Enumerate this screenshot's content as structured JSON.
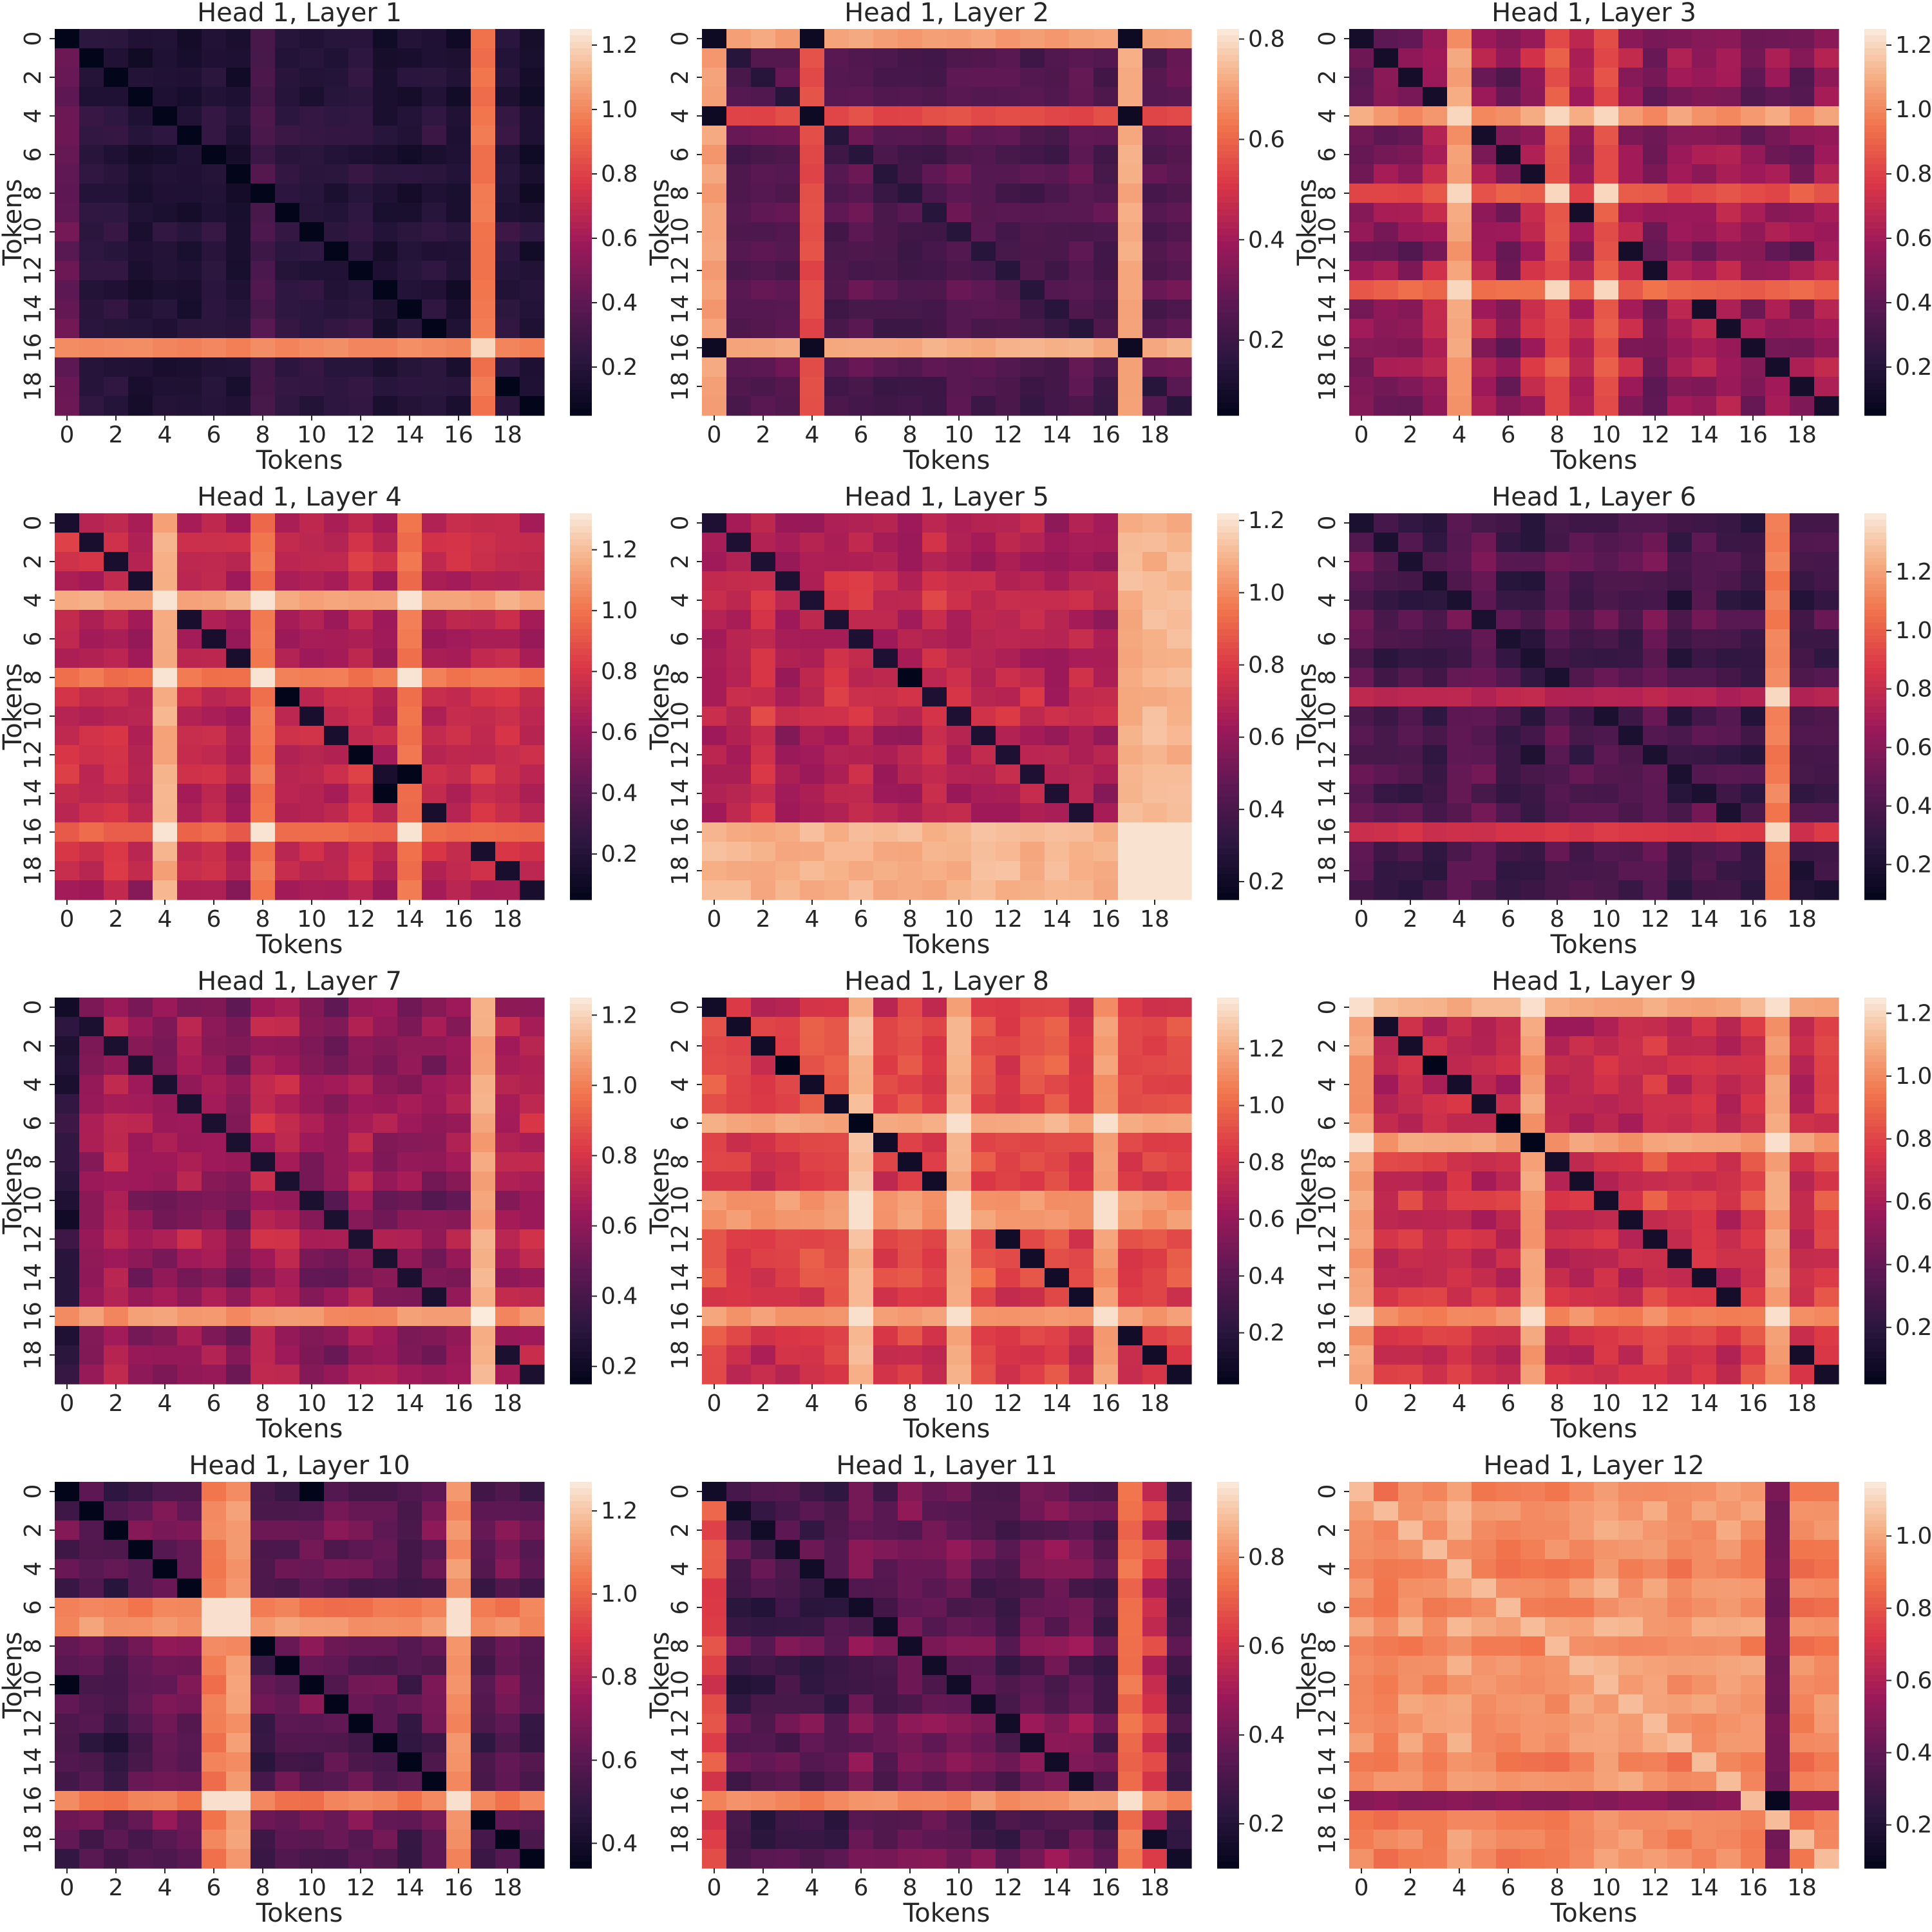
{
  "chart_data": [
    {
      "type": "heatmap",
      "title": "Head 1, Layer 1",
      "xlabel": "Tokens",
      "ylabel": "Tokens",
      "x_ticks": [
        "0",
        "2",
        "4",
        "6",
        "8",
        "10",
        "12",
        "14",
        "16",
        "18"
      ],
      "y_ticks": [
        "0",
        "2",
        "4",
        "6",
        "8",
        "10",
        "12",
        "14",
        "16",
        "18"
      ],
      "colorbar": {
        "ticks": [
          0.2,
          0.4,
          0.6,
          0.8,
          1.0,
          1.2
        ],
        "tick_labels": [
          "0.2",
          "0.4",
          "0.6",
          "0.8",
          "1.0",
          "1.2"
        ],
        "vmin": 0.05,
        "vmax": 1.25
      },
      "pattern": "bands",
      "params": {
        "base": 0.2,
        "rows": {
          "16": 1.0
        },
        "cols": {
          "17": 0.95
        },
        "intersect": 1.2,
        "diag": 0,
        "lowcells": [],
        "noise": 0.08,
        "seed": 11,
        "colOffsets": {
          "0": 0.25,
          "8": 0.15
        }
      }
    },
    {
      "type": "heatmap",
      "title": "Head 1, Layer 2",
      "xlabel": "Tokens",
      "ylabel": "Tokens",
      "x_ticks": [
        "0",
        "2",
        "4",
        "6",
        "8",
        "10",
        "12",
        "14",
        "16",
        "18"
      ],
      "y_ticks": [
        "0",
        "2",
        "4",
        "6",
        "8",
        "10",
        "12",
        "14",
        "16",
        "18"
      ],
      "colorbar": {
        "ticks": [
          0.2,
          0.4,
          0.6,
          0.8
        ],
        "tick_labels": [
          "0.2",
          "0.4",
          "0.6",
          "0.8"
        ],
        "vmin": 0.05,
        "vmax": 0.82
      },
      "pattern": "bands",
      "params": {
        "base": 0.25,
        "rows": {
          "0": 0.7,
          "4": 0.55,
          "16": 0.72
        },
        "cols": {
          "0": 0.7,
          "4": 0.55,
          "17": 0.72
        },
        "intersect": 0.08,
        "diag": 0.1,
        "lowcells": [],
        "noise": 0.06,
        "seed": 23,
        "colOffsets": {}
      }
    },
    {
      "type": "heatmap",
      "title": "Head 1, Layer 3",
      "xlabel": "Tokens",
      "ylabel": "Tokens",
      "x_ticks": [
        "0",
        "2",
        "4",
        "6",
        "8",
        "10",
        "12",
        "14",
        "16",
        "18"
      ],
      "y_ticks": [
        "0",
        "2",
        "4",
        "6",
        "8",
        "10",
        "12",
        "14",
        "16",
        "18"
      ],
      "colorbar": {
        "ticks": [
          0.2,
          0.4,
          0.6,
          0.8,
          1.0,
          1.2
        ],
        "tick_labels": [
          "0.2",
          "0.4",
          "0.6",
          "0.8",
          "1.0",
          "1.2"
        ],
        "vmin": 0.05,
        "vmax": 1.25
      },
      "pattern": "bands",
      "params": {
        "base": 0.55,
        "rows": {
          "4": 1.05,
          "8": 0.85,
          "13": 0.9
        },
        "cols": {
          "4": 1.05,
          "8": 0.85,
          "10": 0.85
        },
        "intersect": 1.2,
        "diag": 0.08,
        "lowcells": [],
        "noise": 0.18,
        "seed": 37,
        "colOffsets": {}
      }
    },
    {
      "type": "heatmap",
      "title": "Head 1, Layer 4",
      "xlabel": "Tokens",
      "ylabel": "Tokens",
      "x_ticks": [
        "0",
        "2",
        "4",
        "6",
        "8",
        "10",
        "12",
        "14",
        "16",
        "18"
      ],
      "y_ticks": [
        "0",
        "2",
        "4",
        "6",
        "8",
        "10",
        "12",
        "14",
        "16",
        "18"
      ],
      "colorbar": {
        "ticks": [
          0.2,
          0.4,
          0.6,
          0.8,
          1.0,
          1.2
        ],
        "tick_labels": [
          "0.2",
          "0.4",
          "0.6",
          "0.8",
          "1.0",
          "1.2"
        ],
        "vmin": 0.05,
        "vmax": 1.32
      },
      "pattern": "bands",
      "params": {
        "base": 0.7,
        "rows": {
          "4": 1.15,
          "8": 1.0,
          "16": 0.95
        },
        "cols": {
          "4": 1.15,
          "8": 1.0,
          "14": 1.0
        },
        "intersect": 1.3,
        "diag": 0.1,
        "lowcells": [
          [
            12,
            12
          ],
          [
            13,
            14
          ],
          [
            9,
            9
          ]
        ],
        "noise": 0.12,
        "seed": 41,
        "colOffsets": {}
      }
    },
    {
      "type": "heatmap",
      "title": "Head 1, Layer 5",
      "xlabel": "Tokens",
      "ylabel": "Tokens",
      "x_ticks": [
        "0",
        "2",
        "4",
        "6",
        "8",
        "10",
        "12",
        "14",
        "16",
        "18"
      ],
      "y_ticks": [
        "0",
        "2",
        "4",
        "6",
        "8",
        "10",
        "12",
        "14",
        "16",
        "18"
      ],
      "colorbar": {
        "ticks": [
          0.2,
          0.4,
          0.6,
          0.8,
          1.0,
          1.2
        ],
        "tick_labels": [
          "0.2",
          "0.4",
          "0.6",
          "0.8",
          "1.0",
          "1.2"
        ],
        "vmin": 0.15,
        "vmax": 1.22
      },
      "pattern": "bands",
      "params": {
        "base": 0.72,
        "rows": {
          "16": 1.1,
          "17": 1.1,
          "18": 1.1,
          "19": 1.1
        },
        "cols": {
          "17": 1.1,
          "18": 1.1,
          "19": 1.1
        },
        "intersect": 1.2,
        "diag": 0.2,
        "lowcells": [
          [
            8,
            8
          ]
        ],
        "noise": 0.12,
        "seed": 53,
        "colOffsets": {}
      }
    },
    {
      "type": "heatmap",
      "title": "Head 1, Layer 6",
      "xlabel": "Tokens",
      "ylabel": "Tokens",
      "x_ticks": [
        "0",
        "2",
        "4",
        "6",
        "8",
        "10",
        "12",
        "14",
        "16",
        "18"
      ],
      "y_ticks": [
        "0",
        "2",
        "4",
        "6",
        "8",
        "10",
        "12",
        "14",
        "16",
        "18"
      ],
      "colorbar": {
        "ticks": [
          0.2,
          0.4,
          0.6,
          0.8,
          1.0,
          1.2
        ],
        "tick_labels": [
          "0.2",
          "0.4",
          "0.6",
          "0.8",
          "1.0",
          "1.2"
        ],
        "vmin": 0.08,
        "vmax": 1.4
      },
      "pattern": "bands",
      "params": {
        "base": 0.42,
        "rows": {
          "9": 0.75,
          "16": 0.85
        },
        "cols": {
          "17": 1.1
        },
        "intersect": 1.35,
        "diag": 0.15,
        "lowcells": [],
        "noise": 0.15,
        "seed": 67,
        "colOffsets": {}
      }
    },
    {
      "type": "heatmap",
      "title": "Head 1, Layer 7",
      "xlabel": "Tokens",
      "ylabel": "Tokens",
      "x_ticks": [
        "0",
        "2",
        "4",
        "6",
        "8",
        "10",
        "12",
        "14",
        "16",
        "18"
      ],
      "y_ticks": [
        "0",
        "2",
        "4",
        "6",
        "8",
        "10",
        "12",
        "14",
        "16",
        "18"
      ],
      "colorbar": {
        "ticks": [
          0.2,
          0.4,
          0.6,
          0.8,
          1.0,
          1.2
        ],
        "tick_labels": [
          "0.2",
          "0.4",
          "0.6",
          "0.8",
          "1.0",
          "1.2"
        ],
        "vmin": 0.15,
        "vmax": 1.25
      },
      "pattern": "bands",
      "params": {
        "base": 0.62,
        "rows": {
          "16": 1.05
        },
        "cols": {
          "17": 1.1
        },
        "intersect": 1.25,
        "diag": 0.2,
        "lowcells": [],
        "noise": 0.14,
        "seed": 71,
        "colOffsets": {
          "0": -0.35
        }
      }
    },
    {
      "type": "heatmap",
      "title": "Head 1, Layer 8",
      "xlabel": "Tokens",
      "ylabel": "Tokens",
      "x_ticks": [
        "0",
        "2",
        "4",
        "6",
        "8",
        "10",
        "12",
        "14",
        "16",
        "18"
      ],
      "y_ticks": [
        "0",
        "2",
        "4",
        "6",
        "8",
        "10",
        "12",
        "14",
        "16",
        "18"
      ],
      "colorbar": {
        "ticks": [
          0.2,
          0.4,
          0.6,
          0.8,
          1.0,
          1.2
        ],
        "tick_labels": [
          "0.2",
          "0.4",
          "0.6",
          "0.8",
          "1.0",
          "1.2"
        ],
        "vmin": 0.02,
        "vmax": 1.38
      },
      "pattern": "bands",
      "params": {
        "base": 0.85,
        "rows": {
          "6": 1.2,
          "10": 1.15,
          "11": 1.15,
          "16": 1.15
        },
        "cols": {
          "6": 1.25,
          "10": 1.2,
          "16": 1.15
        },
        "intersect": 1.35,
        "diag": 0.05,
        "lowcells": [
          [
            6,
            6
          ],
          [
            3,
            3
          ]
        ],
        "noise": 0.14,
        "seed": 83,
        "colOffsets": {}
      }
    },
    {
      "type": "heatmap",
      "title": "Head 1, Layer 9",
      "xlabel": "Tokens",
      "ylabel": "Tokens",
      "x_ticks": [
        "0",
        "2",
        "4",
        "6",
        "8",
        "10",
        "12",
        "14",
        "16",
        "18"
      ],
      "y_ticks": [
        "0",
        "2",
        "4",
        "6",
        "8",
        "10",
        "12",
        "14",
        "16",
        "18"
      ],
      "colorbar": {
        "ticks": [
          0.2,
          0.4,
          0.6,
          0.8,
          1.0,
          1.2
        ],
        "tick_labels": [
          "0.2",
          "0.4",
          "0.6",
          "0.8",
          "1.0",
          "1.2"
        ],
        "vmin": 0.02,
        "vmax": 1.25
      },
      "pattern": "bands",
      "params": {
        "base": 0.75,
        "rows": {
          "0": 1.1,
          "7": 1.05,
          "16": 1.0
        },
        "cols": {
          "0": 1.05,
          "7": 1.05,
          "17": 1.05
        },
        "intersect": 1.22,
        "diag": 0.05,
        "lowcells": [
          [
            3,
            3
          ],
          [
            6,
            6
          ],
          [
            7,
            7
          ]
        ],
        "noise": 0.14,
        "seed": 97,
        "colOffsets": {}
      }
    },
    {
      "type": "heatmap",
      "title": "Head 1, Layer 10",
      "xlabel": "Tokens",
      "ylabel": "Tokens",
      "x_ticks": [
        "0",
        "2",
        "4",
        "6",
        "8",
        "10",
        "12",
        "14",
        "16",
        "18"
      ],
      "y_ticks": [
        "0",
        "2",
        "4",
        "6",
        "8",
        "10",
        "12",
        "14",
        "16",
        "18"
      ],
      "colorbar": {
        "ticks": [
          0.4,
          0.6,
          0.8,
          1.0,
          1.2
        ],
        "tick_labels": [
          "0.4",
          "0.6",
          "0.8",
          "1.0",
          "1.2"
        ],
        "vmin": 0.34,
        "vmax": 1.27
      },
      "pattern": "bands",
      "params": {
        "base": 0.6,
        "rows": {
          "6": 1.05,
          "7": 1.1,
          "16": 1.05
        },
        "cols": {
          "6": 1.05,
          "7": 1.1,
          "16": 1.1
        },
        "intersect": 1.25,
        "diag": 0.1,
        "lowcells": [
          [
            11,
            11
          ],
          [
            10,
            0
          ]
        ],
        "noise": 0.12,
        "seed": 101,
        "colOffsets": {}
      }
    },
    {
      "type": "heatmap",
      "title": "Head 1, Layer 11",
      "xlabel": "Tokens",
      "ylabel": "Tokens",
      "x_ticks": [
        "0",
        "2",
        "4",
        "6",
        "8",
        "10",
        "12",
        "14",
        "16",
        "18"
      ],
      "y_ticks": [
        "0",
        "2",
        "4",
        "6",
        "8",
        "10",
        "12",
        "14",
        "16",
        "18"
      ],
      "colorbar": {
        "ticks": [
          0.2,
          0.4,
          0.6,
          0.8
        ],
        "tick_labels": [
          "0.2",
          "0.4",
          "0.6",
          "0.8"
        ],
        "vmin": 0.1,
        "vmax": 0.97
      },
      "pattern": "bands",
      "params": {
        "base": 0.35,
        "rows": {
          "16": 0.8
        },
        "cols": {
          "17": 0.75
        },
        "intersect": 0.95,
        "diag": 0.1,
        "lowcells": [],
        "noise": 0.12,
        "seed": 113,
        "colOffsets": {
          "0": 0.3,
          "18": 0.25
        }
      }
    },
    {
      "type": "heatmap",
      "title": "Head 1, Layer 12",
      "xlabel": "Tokens",
      "ylabel": "Tokens",
      "x_ticks": [
        "0",
        "2",
        "4",
        "6",
        "8",
        "10",
        "12",
        "14",
        "16",
        "18"
      ],
      "y_ticks": [
        "0",
        "2",
        "4",
        "6",
        "8",
        "10",
        "12",
        "14",
        "16",
        "18"
      ],
      "colorbar": {
        "ticks": [
          0.2,
          0.4,
          0.6,
          0.8,
          1.0
        ],
        "tick_labels": [
          "0.2",
          "0.4",
          "0.6",
          "0.8",
          "1.0"
        ],
        "vmin": 0.08,
        "vmax": 1.15
      },
      "pattern": "bands",
      "params": {
        "base": 0.95,
        "rows": {
          "16": 0.5
        },
        "cols": {
          "17": 0.45
        },
        "intersect": 0.1,
        "diag": 1.05,
        "lowcells": [],
        "noise": 0.08,
        "seed": 127,
        "colOffsets": {}
      }
    }
  ]
}
